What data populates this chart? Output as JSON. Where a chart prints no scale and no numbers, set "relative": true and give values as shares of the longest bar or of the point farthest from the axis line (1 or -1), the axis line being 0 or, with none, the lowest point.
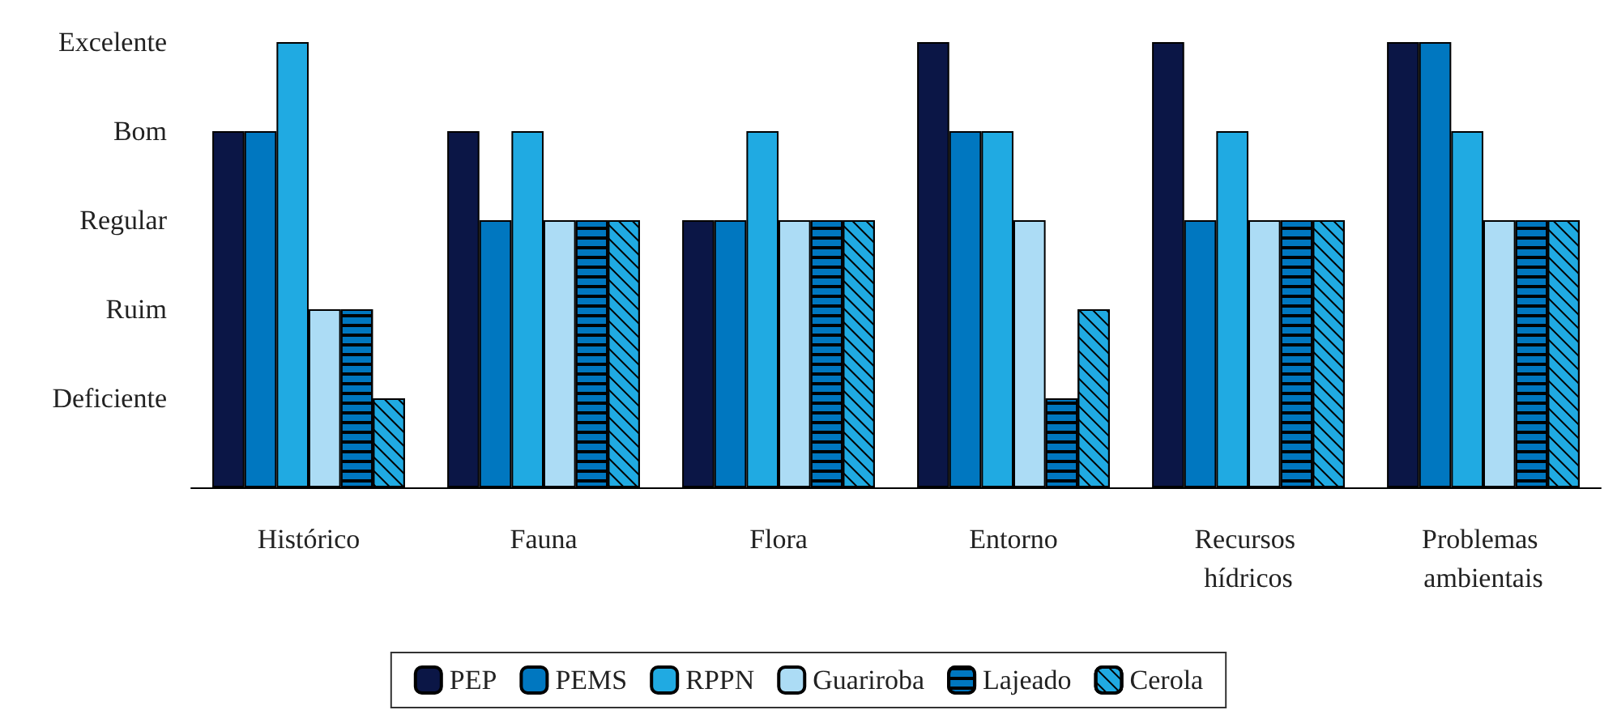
{
  "chart_data": {
    "type": "bar",
    "relative": true,
    "categories": [
      "Histórico",
      "Fauna",
      "Flora",
      "Entorno",
      "Recursos hídricos",
      "Problemas ambientais"
    ],
    "series": [
      {
        "name": "PEP",
        "color": "#0b1646",
        "values": [
          0.8,
          0.8,
          0.6,
          1,
          1,
          1
        ]
      },
      {
        "name": "PEMS",
        "color": "#0077c0",
        "values": [
          0.8,
          0.6,
          0.6,
          0.8,
          0.6,
          1
        ]
      },
      {
        "name": "RPPN",
        "color": "#20aae2",
        "values": [
          1,
          0.8,
          0.8,
          0.8,
          0.8,
          0.8
        ]
      },
      {
        "name": "Guariroba",
        "color": "#acdcf5",
        "values": [
          0.4,
          0.6,
          0.6,
          0.6,
          0.6,
          0.6
        ]
      },
      {
        "name": "Lajeado",
        "color": "#0077c0",
        "values": [
          0.4,
          0.6,
          0.6,
          0.2,
          0.6,
          0.6
        ]
      },
      {
        "name": "Cerola",
        "color": "#20aae2",
        "values": [
          0.2,
          0.6,
          0.6,
          0.4,
          0.6,
          0.6
        ]
      }
    ],
    "annotations": [
      "Deficiente",
      "Ruim",
      "Regular",
      "Bom",
      "Excelente"
    ],
    "legend": "bottom"
  }
}
